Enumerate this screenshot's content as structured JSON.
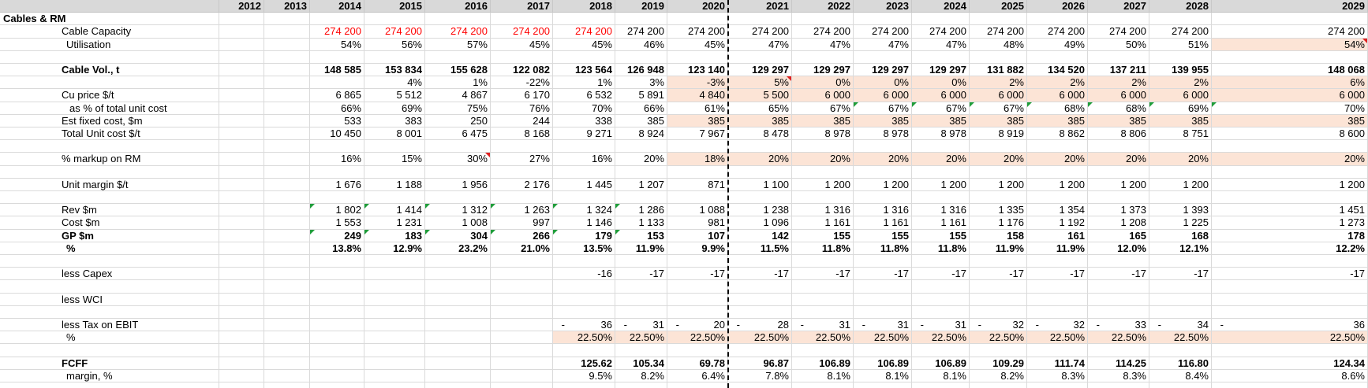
{
  "sheet": {
    "section_title": "Cables & RM",
    "years": [
      "2012",
      "2013",
      "2014",
      "2015",
      "2016",
      "2017",
      "2018",
      "2019",
      "2020",
      "2021",
      "2022",
      "2023",
      "2024",
      "2025",
      "2026",
      "2027",
      "2028",
      "2029"
    ],
    "rows": [
      {
        "label": "",
        "type": "header"
      },
      {
        "label": "Cables & RM",
        "bold": true,
        "indent": 0,
        "values": []
      },
      {
        "label": "Cable Capacity",
        "indent": 1,
        "values": [
          "",
          "",
          "274 200",
          "274 200",
          "274 200",
          "274 200",
          "274 200",
          "274 200",
          "274 200",
          "274 200",
          "274 200",
          "274 200",
          "274 200",
          "274 200",
          "274 200",
          "274 200",
          "274 200",
          "274 200"
        ],
        "red_cols": [
          2,
          3,
          4,
          5,
          6
        ]
      },
      {
        "label": "Utilisation",
        "indent": 2,
        "values": [
          "",
          "",
          "54%",
          "56%",
          "57%",
          "45%",
          "45%",
          "46%",
          "45%",
          "47%",
          "47%",
          "47%",
          "47%",
          "48%",
          "49%",
          "50%",
          "51%",
          "54%"
        ],
        "shade_cols": [
          17
        ],
        "redtri_cols": [
          17
        ]
      },
      {
        "label": "",
        "values": []
      },
      {
        "label": "Cable Vol., t",
        "bold": true,
        "indent": 1,
        "values": [
          "",
          "",
          "148 585",
          "153 834",
          "155 628",
          "122 082",
          "123 564",
          "126 948",
          "123 140",
          "129 297",
          "129 297",
          "129 297",
          "129 297",
          "131 882",
          "134 520",
          "137 211",
          "139 955",
          "148 068"
        ]
      },
      {
        "label": "",
        "indent": 1,
        "values": [
          "",
          "",
          "",
          "4%",
          "1%",
          "-22%",
          "1%",
          "3%",
          "-3%",
          "5%",
          "0%",
          "0%",
          "0%",
          "2%",
          "2%",
          "2%",
          "2%",
          "6%"
        ],
        "shade_cols": [
          8,
          9,
          10,
          11,
          12,
          13,
          14,
          15,
          16,
          17
        ],
        "redtri_cols": [
          9
        ]
      },
      {
        "label": "Cu price $/t",
        "indent": 1,
        "values": [
          "",
          "",
          "6 865",
          "5 512",
          "4 867",
          "6 170",
          "6 532",
          "5 891",
          "4 840",
          "5 500",
          "6 000",
          "6 000",
          "6 000",
          "6 000",
          "6 000",
          "6 000",
          "6 000",
          "6 000"
        ],
        "shade_cols": [
          8,
          9,
          10,
          11,
          12,
          13,
          14,
          15,
          16,
          17
        ]
      },
      {
        "label": "as % of total unit cost",
        "indent": 3,
        "values": [
          "",
          "",
          "66%",
          "69%",
          "75%",
          "76%",
          "70%",
          "66%",
          "61%",
          "65%",
          "67%",
          "67%",
          "67%",
          "67%",
          "68%",
          "68%",
          "69%",
          "70%"
        ],
        "greentri_cols": [
          11,
          12,
          13,
          14,
          15,
          16,
          17
        ]
      },
      {
        "label": "Est fixed cost, $m",
        "indent": 1,
        "values": [
          "",
          "",
          "533",
          "383",
          "250",
          "244",
          "338",
          "385",
          "385",
          "385",
          "385",
          "385",
          "385",
          "385",
          "385",
          "385",
          "385",
          "385"
        ],
        "shade_cols": [
          8,
          9,
          10,
          11,
          12,
          13,
          14,
          15,
          16,
          17
        ]
      },
      {
        "label": "Total Unit cost $/t",
        "indent": 1,
        "values": [
          "",
          "",
          "10 450",
          "8 001",
          "6 475",
          "8 168",
          "9 271",
          "8 924",
          "7 967",
          "8 478",
          "8 978",
          "8 978",
          "8 978",
          "8 919",
          "8 862",
          "8 806",
          "8 751",
          "8 600"
        ]
      },
      {
        "label": "",
        "values": []
      },
      {
        "label": "% markup on RM",
        "indent": 1,
        "values": [
          "",
          "",
          "16%",
          "15%",
          "30%",
          "27%",
          "16%",
          "20%",
          "18%",
          "20%",
          "20%",
          "20%",
          "20%",
          "20%",
          "20%",
          "20%",
          "20%",
          "20%"
        ],
        "shade_cols": [
          8,
          9,
          10,
          11,
          12,
          13,
          14,
          15,
          16,
          17
        ],
        "redtri_cols": [
          4
        ]
      },
      {
        "label": "",
        "values": []
      },
      {
        "label": "Unit margin $/t",
        "indent": 1,
        "values": [
          "",
          "",
          "1 676",
          "1 188",
          "1 956",
          "2 176",
          "1 445",
          "1 207",
          "871",
          "1 100",
          "1 200",
          "1 200",
          "1 200",
          "1 200",
          "1 200",
          "1 200",
          "1 200",
          "1 200"
        ]
      },
      {
        "label": "",
        "values": []
      },
      {
        "label": "Rev $m",
        "indent": 1,
        "values": [
          "",
          "",
          "1 802",
          "1 414",
          "1 312",
          "1 263",
          "1 324",
          "1 286",
          "1 088",
          "1 238",
          "1 316",
          "1 316",
          "1 316",
          "1 335",
          "1 354",
          "1 373",
          "1 393",
          "1 451"
        ],
        "greentri_cols": [
          2,
          3,
          4,
          5,
          6,
          7
        ]
      },
      {
        "label": "Cost $m",
        "indent": 1,
        "values": [
          "",
          "",
          "1 553",
          "1 231",
          "1 008",
          "997",
          "1 146",
          "1 133",
          "981",
          "1 096",
          "1 161",
          "1 161",
          "1 161",
          "1 176",
          "1 192",
          "1 208",
          "1 225",
          "1 273"
        ]
      },
      {
        "label": "GP $m",
        "bold": true,
        "indent": 1,
        "values": [
          "",
          "",
          "249",
          "183",
          "304",
          "266",
          "179",
          "153",
          "107",
          "142",
          "155",
          "155",
          "155",
          "158",
          "161",
          "165",
          "168",
          "178"
        ],
        "greentri_cols": [
          2,
          3,
          4,
          5,
          6,
          7
        ]
      },
      {
        "label": "%",
        "bold": true,
        "indent": 2,
        "values": [
          "",
          "",
          "13.8%",
          "12.9%",
          "23.2%",
          "21.0%",
          "13.5%",
          "11.9%",
          "9.9%",
          "11.5%",
          "11.8%",
          "11.8%",
          "11.8%",
          "11.9%",
          "11.9%",
          "12.0%",
          "12.1%",
          "12.2%"
        ]
      },
      {
        "label": "",
        "values": []
      },
      {
        "label": "less Capex",
        "indent": 1,
        "values": [
          "",
          "",
          "",
          "",
          "",
          "",
          "-16",
          "-17",
          "-17",
          "-17",
          "-17",
          "-17",
          "-17",
          "-17",
          "-17",
          "-17",
          "-17",
          "-17"
        ]
      },
      {
        "label": "",
        "values": []
      },
      {
        "label": "less WCI",
        "indent": 1,
        "values": []
      },
      {
        "label": "",
        "values": []
      },
      {
        "label": "less Tax on EBIT",
        "indent": 1,
        "values": [
          "",
          "",
          "",
          "",
          "",
          "",
          "36",
          "31",
          "20",
          "28",
          "31",
          "31",
          "31",
          "32",
          "32",
          "33",
          "34",
          "36"
        ],
        "dash_cols": [
          6,
          7,
          8,
          9,
          10,
          11,
          12,
          13,
          14,
          15,
          16,
          17
        ]
      },
      {
        "label": "%",
        "indent": 2,
        "values": [
          "",
          "",
          "",
          "",
          "",
          "",
          "22.50%",
          "22.50%",
          "22.50%",
          "22.50%",
          "22.50%",
          "22.50%",
          "22.50%",
          "22.50%",
          "22.50%",
          "22.50%",
          "22.50%",
          "22.50%"
        ],
        "shade_cols": [
          6,
          7,
          8,
          9,
          10,
          11,
          12,
          13,
          14,
          15,
          16,
          17
        ]
      },
      {
        "label": "",
        "values": []
      },
      {
        "label": "FCFF",
        "bold": true,
        "indent": 1,
        "values": [
          "",
          "",
          "",
          "",
          "",
          "",
          "125.62",
          "105.34",
          "69.78",
          "96.87",
          "106.89",
          "106.89",
          "106.89",
          "109.29",
          "111.74",
          "114.25",
          "116.80",
          "124.34"
        ]
      },
      {
        "label": "margin, %",
        "indent": 2,
        "values": [
          "",
          "",
          "",
          "",
          "",
          "",
          "9.5%",
          "8.2%",
          "6.4%",
          "7.8%",
          "8.1%",
          "8.1%",
          "8.1%",
          "8.2%",
          "8.3%",
          "8.3%",
          "8.4%",
          "8.6%"
        ]
      },
      {
        "label": "",
        "values": []
      }
    ]
  }
}
